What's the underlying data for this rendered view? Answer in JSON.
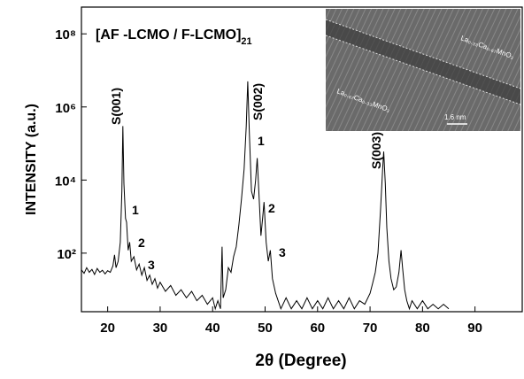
{
  "chart_data": {
    "type": "line",
    "title": "[AF -LCMO / F-LCMO]",
    "title_sub": "21",
    "xlabel": "2θ (Degree)",
    "ylabel": "INTENSITY (a.u.)",
    "log_y": true,
    "color": "#000000",
    "xlim": [
      15,
      99
    ],
    "xticks": [
      20,
      30,
      40,
      50,
      60,
      70,
      80,
      90
    ],
    "ylim": [
      2.5,
      540000000
    ],
    "yticks": [
      {
        "value": 100,
        "label": "10²"
      },
      {
        "value": 10000,
        "label": "10⁴"
      },
      {
        "value": 1000000,
        "label": "10⁶"
      },
      {
        "value": 100000000,
        "label": "10⁸"
      }
    ],
    "annotations": [
      "S(001)",
      "1",
      "2",
      "3",
      "S(002)",
      "1",
      "2",
      "3",
      "S(003)"
    ],
    "inset_labels": [
      "La₀.₃₃Ca₀.₆₇MnO₃",
      "La₀.₆₇Ca₀.₃₃MnO₃",
      "1.6 nm"
    ],
    "x": [
      15,
      15.5,
      16,
      16.5,
      17,
      17.5,
      18,
      18.5,
      19,
      19.5,
      20,
      20.5,
      21,
      21.3,
      21.6,
      22,
      22.4,
      22.7,
      22.9,
      23.1,
      23.4,
      23.6,
      23.9,
      24.2,
      24.5,
      25,
      25.5,
      26,
      26.5,
      27,
      27.5,
      28,
      28.5,
      29,
      29.5,
      30,
      31,
      32,
      33,
      34,
      35,
      36,
      37,
      38,
      39,
      40,
      40.5,
      41,
      41.5,
      41.8,
      42,
      42.5,
      43,
      43.5,
      44,
      44.5,
      45,
      45.5,
      46,
      46.4,
      46.7,
      47,
      47.4,
      47.8,
      48.2,
      48.5,
      48.8,
      49.2,
      49.5,
      49.8,
      50.2,
      50.6,
      51,
      51.4,
      52,
      53,
      54,
      55,
      56,
      57,
      58,
      59,
      60,
      61,
      62,
      63,
      64,
      65,
      66,
      67,
      68,
      69,
      70,
      70.5,
      71,
      71.5,
      72,
      72.4,
      72.6,
      72.9,
      73.2,
      73.6,
      74,
      74.5,
      75,
      75.5,
      75.9,
      76.2,
      76.6,
      77,
      77.5,
      78,
      79,
      80,
      81,
      82,
      83,
      84,
      85
    ],
    "values": [
      35,
      28,
      40,
      30,
      36,
      26,
      38,
      30,
      34,
      27,
      33,
      30,
      45,
      90,
      40,
      60,
      200,
      5000,
      300000,
      8000,
      900,
      700,
      120,
      200,
      60,
      80,
      35,
      50,
      25,
      40,
      18,
      25,
      14,
      20,
      11,
      16,
      9,
      13,
      7,
      10,
      6,
      9,
      5,
      7,
      4,
      6,
      3,
      5,
      3,
      150,
      6,
      10,
      40,
      30,
      80,
      150,
      600,
      3000,
      20000,
      300000,
      5000000,
      200000,
      5000,
      3000,
      10000,
      40000,
      5000,
      300,
      800,
      2500,
      200,
      60,
      120,
      20,
      8,
      3,
      6,
      3,
      5,
      3,
      6,
      3,
      5,
      3,
      6,
      3,
      5,
      3,
      6,
      3,
      5,
      4,
      8,
      15,
      30,
      100,
      1500,
      20000,
      60000,
      8000,
      500,
      60,
      20,
      10,
      12,
      30,
      120,
      40,
      10,
      5,
      3,
      5,
      3,
      5,
      3,
      4,
      3,
      4,
      3
    ]
  }
}
